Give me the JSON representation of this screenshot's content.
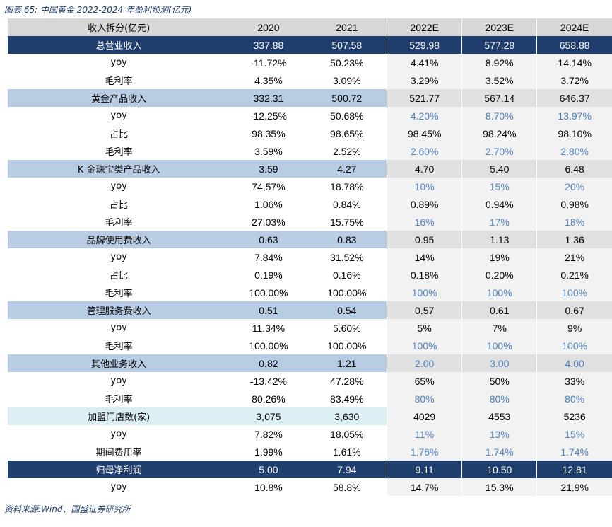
{
  "caption": "图表 65:  中国黄金 2022-2024 年盈利预测(亿元)",
  "source": "资料来源:Wind、国盛证券研究所",
  "header": {
    "label": "收入拆分(亿元)",
    "years": [
      "2020",
      "2021",
      "2022E",
      "2023E",
      "2024E"
    ]
  },
  "rows": [
    {
      "label": "总营业收入",
      "type": "total",
      "values": [
        "337.88",
        "507.58",
        "529.98",
        "577.28",
        "658.88"
      ],
      "blue": false
    },
    {
      "label": "yoy",
      "type": "plain",
      "values": [
        "-11.72%",
        "50.23%",
        "4.41%",
        "8.92%",
        "14.14%"
      ],
      "blue": false
    },
    {
      "label": "毛利率",
      "type": "plain",
      "values": [
        "4.35%",
        "3.09%",
        "3.29%",
        "3.52%",
        "3.72%"
      ],
      "blue": false
    },
    {
      "label": "黄金产品收入",
      "type": "sec",
      "values": [
        "332.31",
        "500.72",
        "521.77",
        "567.14",
        "646.37"
      ],
      "blue": false
    },
    {
      "label": "yoy",
      "type": "plain",
      "values": [
        "-12.25%",
        "50.68%",
        "4.20%",
        "8.70%",
        "13.97%"
      ],
      "blue": true
    },
    {
      "label": "占比",
      "type": "plain",
      "values": [
        "98.35%",
        "98.65%",
        "98.45%",
        "98.24%",
        "98.10%"
      ],
      "blue": false
    },
    {
      "label": "毛利率",
      "type": "plain",
      "values": [
        "3.59%",
        "2.52%",
        "2.60%",
        "2.70%",
        "2.80%"
      ],
      "blue": true
    },
    {
      "label": "K 金珠宝类产品收入",
      "type": "sec",
      "values": [
        "3.59",
        "4.27",
        "4.70",
        "5.40",
        "6.48"
      ],
      "blue": false
    },
    {
      "label": "yoy",
      "type": "plain",
      "values": [
        "74.57%",
        "18.78%",
        "10%",
        "15%",
        "20%"
      ],
      "blue": true
    },
    {
      "label": "占比",
      "type": "plain",
      "values": [
        "1.06%",
        "0.84%",
        "0.89%",
        "0.94%",
        "0.98%"
      ],
      "blue": false
    },
    {
      "label": "毛利率",
      "type": "plain",
      "values": [
        "27.03%",
        "15.75%",
        "16%",
        "17%",
        "18%"
      ],
      "blue": true
    },
    {
      "label": "品牌使用费收入",
      "type": "sec",
      "values": [
        "0.63",
        "0.83",
        "0.95",
        "1.13",
        "1.36"
      ],
      "blue": false
    },
    {
      "label": "yoy",
      "type": "plain",
      "values": [
        "7.84%",
        "31.52%",
        "14%",
        "19%",
        "21%"
      ],
      "blue": false
    },
    {
      "label": "占比",
      "type": "plain",
      "values": [
        "0.19%",
        "0.16%",
        "0.18%",
        "0.20%",
        "0.21%"
      ],
      "blue": false
    },
    {
      "label": "毛利率",
      "type": "plain",
      "values": [
        "100.00%",
        "100.00%",
        "100%",
        "100%",
        "100%"
      ],
      "blue": true
    },
    {
      "label": "管理服务费收入",
      "type": "sec",
      "values": [
        "0.51",
        "0.54",
        "0.57",
        "0.61",
        "0.67"
      ],
      "blue": false
    },
    {
      "label": "yoy",
      "type": "plain",
      "values": [
        "11.34%",
        "5.60%",
        "5%",
        "7%",
        "9%"
      ],
      "blue": false
    },
    {
      "label": "毛利率",
      "type": "plain",
      "values": [
        "100.00%",
        "100.00%",
        "100%",
        "100%",
        "100%"
      ],
      "blue": true
    },
    {
      "label": "其他业务收入",
      "type": "sec",
      "values": [
        "0.82",
        "1.21",
        "2.00",
        "3.00",
        "4.00"
      ],
      "blue": true
    },
    {
      "label": "yoy",
      "type": "plain",
      "values": [
        "-13.42%",
        "47.28%",
        "65%",
        "50%",
        "33%"
      ],
      "blue": false
    },
    {
      "label": "毛利率",
      "type": "plain",
      "values": [
        "80.26%",
        "83.49%",
        "80%",
        "80%",
        "80%"
      ],
      "blue": true
    },
    {
      "label": "加盟门店数(家)",
      "type": "cnt",
      "values": [
        "3,075",
        "3,630",
        "4029",
        "4553",
        "5236"
      ],
      "blue": false
    },
    {
      "label": "yoy",
      "type": "plain",
      "values": [
        "7.82%",
        "18.05%",
        "11%",
        "13%",
        "15%"
      ],
      "blue": true
    },
    {
      "label": "期间费用率",
      "type": "plain",
      "values": [
        "1.99%",
        "1.61%",
        "1.76%",
        "1.74%",
        "1.74%"
      ],
      "blue": true
    },
    {
      "label": "归母净利润",
      "type": "total",
      "values": [
        "5.00",
        "7.94",
        "9.11",
        "10.50",
        "12.81"
      ],
      "blue": false
    },
    {
      "label": "yoy",
      "type": "plain",
      "values": [
        "10.8%",
        "58.8%",
        "14.7%",
        "15.3%",
        "21.9%"
      ],
      "blue": false
    }
  ]
}
